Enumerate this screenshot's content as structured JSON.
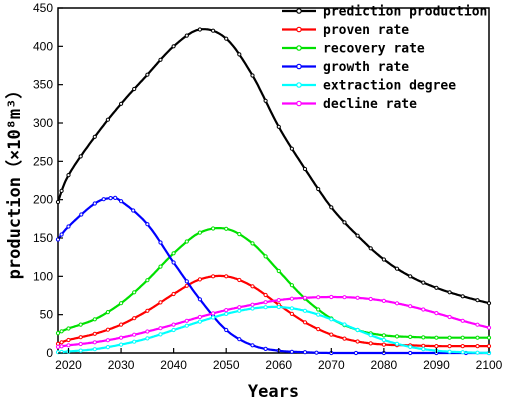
{
  "chart_data": {
    "type": "line",
    "xlabel": "Years",
    "ylabel": "production（×10⁸m³）",
    "xlim": [
      2018,
      2100
    ],
    "ylim": [
      0,
      450
    ],
    "xticks": [
      2020,
      2030,
      2040,
      2050,
      2060,
      2070,
      2080,
      2090,
      2100
    ],
    "yticks": [
      0,
      50,
      100,
      150,
      200,
      250,
      300,
      350,
      400,
      450
    ],
    "grid": false,
    "legend_position": "top-right",
    "series": [
      {
        "name": "prediction production",
        "color": "#000000",
        "x": [
          2018,
          2020,
          2025,
          2030,
          2035,
          2040,
          2045,
          2050,
          2055,
          2060,
          2065,
          2070,
          2075,
          2080,
          2085,
          2090,
          2095,
          2100
        ],
        "values": [
          197,
          232,
          282,
          325,
          363,
          400,
          422,
          410,
          362,
          295,
          240,
          190,
          153,
          122,
          100,
          85,
          74,
          65
        ]
      },
      {
        "name": "proven rate",
        "color": "#ff0000",
        "x": [
          2018,
          2020,
          2025,
          2030,
          2035,
          2040,
          2045,
          2050,
          2055,
          2060,
          2065,
          2070,
          2075,
          2080,
          2085,
          2090,
          2095,
          2100
        ],
        "values": [
          12,
          17,
          25,
          37,
          55,
          77,
          96,
          100,
          87,
          63,
          40,
          24,
          15,
          11,
          10,
          9,
          9,
          9
        ]
      },
      {
        "name": "recovery rate",
        "color": "#00e000",
        "x": [
          2018,
          2020,
          2025,
          2030,
          2035,
          2040,
          2045,
          2050,
          2055,
          2060,
          2065,
          2070,
          2075,
          2080,
          2085,
          2090,
          2095,
          2100
        ],
        "values": [
          26,
          32,
          44,
          65,
          95,
          130,
          157,
          162,
          143,
          107,
          71,
          45,
          30,
          23,
          21,
          20,
          20,
          20
        ]
      },
      {
        "name": "growth rate",
        "color": "#0000ff",
        "x": [
          2018,
          2020,
          2025,
          2028,
          2030,
          2035,
          2040,
          2045,
          2050,
          2055,
          2060,
          2065,
          2070,
          2080,
          2090,
          2100
        ],
        "values": [
          148,
          165,
          195,
          202,
          198,
          168,
          118,
          70,
          30,
          10,
          3,
          1,
          0,
          0,
          0,
          0
        ]
      },
      {
        "name": "extraction degree",
        "color": "#00ffff",
        "x": [
          2018,
          2020,
          2025,
          2030,
          2035,
          2040,
          2045,
          2050,
          2055,
          2060,
          2065,
          2070,
          2075,
          2080,
          2085,
          2090,
          2095,
          2100
        ],
        "values": [
          1,
          2,
          5,
          11,
          19,
          30,
          41,
          51,
          58,
          60,
          55,
          44,
          30,
          17,
          8,
          3,
          1,
          0
        ]
      },
      {
        "name": "decline rate",
        "color": "#ff00ff",
        "x": [
          2018,
          2020,
          2025,
          2030,
          2035,
          2040,
          2045,
          2050,
          2055,
          2060,
          2065,
          2070,
          2075,
          2080,
          2085,
          2090,
          2095,
          2100
        ],
        "values": [
          8,
          10,
          14,
          20,
          28,
          37,
          47,
          56,
          63,
          69,
          72,
          73,
          72,
          68,
          61,
          52,
          42,
          33
        ]
      }
    ]
  }
}
